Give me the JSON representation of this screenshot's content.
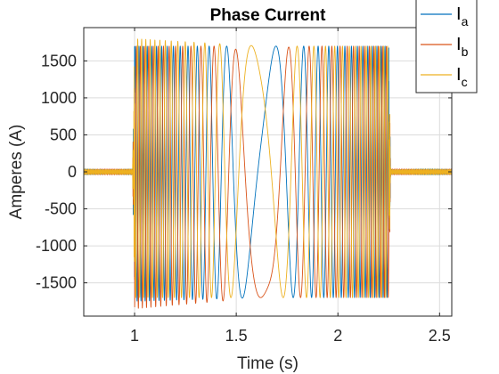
{
  "chart_data": {
    "type": "line",
    "title": "Phase Current",
    "xlabel": "Time (s)",
    "ylabel": "Amperes (A)",
    "xlim": [
      0.75,
      2.56
    ],
    "ylim": [
      -1950,
      1950
    ],
    "xticks": [
      1,
      1.5,
      2,
      2.5
    ],
    "xtick_labels": [
      "1",
      "1.5",
      "2",
      "2.5"
    ],
    "yticks": [
      -1500,
      -1000,
      -500,
      0,
      500,
      1000,
      1500
    ],
    "ytick_labels": [
      "-1500",
      "-1000",
      "-500",
      "0",
      "500",
      "1000",
      "1500"
    ],
    "grid": true,
    "legend_position": "top-right",
    "series": [
      {
        "name": "I",
        "subscript": "a",
        "color": "#0072BD",
        "x": [
          0.75,
          0.99,
          1.0,
          1.62,
          2.25,
          2.26,
          2.56
        ],
        "envelope_max": [
          40,
          40,
          1700,
          1700,
          1700,
          40,
          40
        ],
        "envelope_min": [
          -40,
          -40,
          -1750,
          -1700,
          -1700,
          -40,
          -40
        ]
      },
      {
        "name": "I",
        "subscript": "b",
        "color": "#D95319",
        "x": [
          0.75,
          0.99,
          1.0,
          1.62,
          2.25,
          2.26,
          2.56
        ],
        "envelope_max": [
          40,
          40,
          1700,
          1700,
          1700,
          40,
          40
        ],
        "envelope_min": [
          -40,
          -40,
          -1850,
          -1700,
          -1700,
          -40,
          -40
        ]
      },
      {
        "name": "I",
        "subscript": "c",
        "color": "#EDB120",
        "x": [
          0.75,
          0.99,
          1.0,
          1.62,
          2.25,
          2.26,
          2.56
        ],
        "envelope_max": [
          40,
          40,
          1800,
          1700,
          1700,
          40,
          40
        ],
        "envelope_min": [
          -40,
          -40,
          -1700,
          -1700,
          -1700,
          -40,
          -40
        ]
      }
    ]
  }
}
